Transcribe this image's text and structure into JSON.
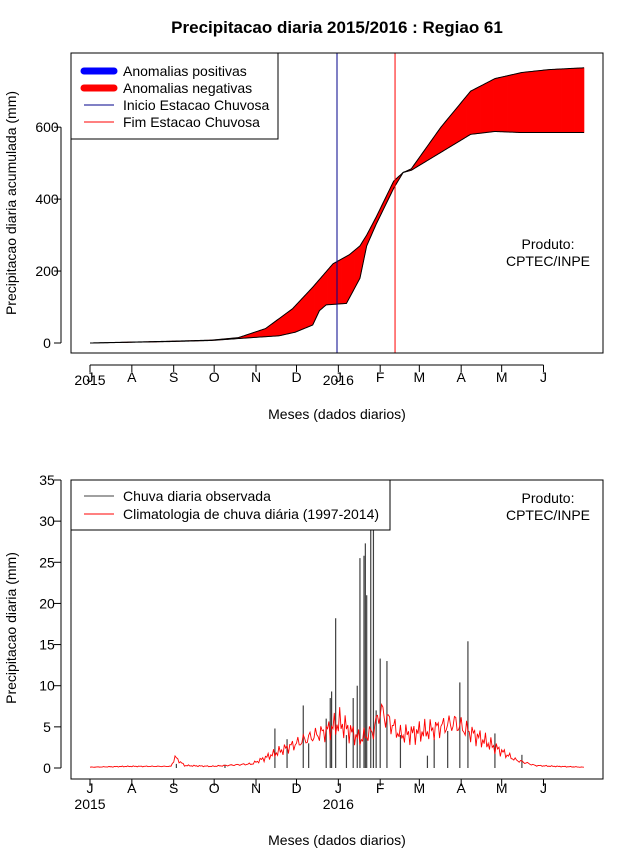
{
  "title": "Precipitacao diaria 2015/2016 : Regiao 61",
  "chart_data": [
    {
      "type": "area",
      "ylabel": "Precipitacao diaria acumulada (mm)",
      "xlabel": "Meses (dados diarios)",
      "ylim": [
        0,
        770
      ],
      "yticks": [
        0,
        200,
        400,
        600
      ],
      "month_ticks": [
        "J",
        "A",
        "S",
        "O",
        "N",
        "D",
        "J",
        "F",
        "M",
        "A",
        "M",
        "J"
      ],
      "year_labels": [
        "2015",
        "2016"
      ],
      "legend": [
        "Anomalias positivas",
        "Anomalias negativas",
        "Inicio Estacao Chuvosa",
        "Fim Estacao Chuvosa"
      ],
      "legend_colors": [
        "#0000ff",
        "#ff0000",
        "#00008b",
        "#ff0000"
      ],
      "annotation": [
        "Produto:",
        "CPTEC/INPE"
      ],
      "start_season_day": 183,
      "end_season_day": 226,
      "observed_cumulative": {
        "day": [
          0,
          60,
          90,
          120,
          140,
          152,
          165,
          170,
          175,
          190,
          200,
          205,
          212,
          225,
          232,
          238,
          260,
          282,
          300,
          320,
          340,
          366
        ],
        "mm": [
          0,
          4,
          7,
          15,
          20,
          30,
          50,
          90,
          106,
          110,
          180,
          270,
          330,
          430,
          474,
          480,
          530,
          580,
          588,
          585,
          585,
          585
        ]
      },
      "climatology_cumulative": {
        "day": [
          0,
          60,
          90,
          110,
          130,
          150,
          165,
          180,
          192,
          200,
          205,
          212,
          225,
          232,
          238,
          260,
          282,
          300,
          320,
          340,
          366
        ],
        "mm": [
          0,
          5,
          8,
          15,
          40,
          95,
          155,
          220,
          245,
          270,
          300,
          350,
          450,
          474,
          484,
          600,
          700,
          735,
          752,
          760,
          765
        ]
      }
    },
    {
      "type": "bar",
      "ylabel": "Precipitacao diaria (mm)",
      "xlabel": "Meses (dados diarios)",
      "ylim": [
        0,
        35
      ],
      "yticks": [
        0,
        5,
        10,
        15,
        20,
        25,
        30,
        35
      ],
      "month_ticks": [
        "J",
        "A",
        "S",
        "O",
        "N",
        "D",
        "J",
        "F",
        "M",
        "A",
        "M",
        "J"
      ],
      "year_labels": [
        "2015",
        "2016"
      ],
      "legend": [
        "Chuva diaria observada",
        "Climatologia de chuva diária (1997-2014)"
      ],
      "legend_colors": [
        "#404040",
        "#ff0000"
      ],
      "annotation": [
        "Produto:",
        "CPTEC/INPE"
      ],
      "observed_daily": {
        "day": [
          64,
          100,
          137,
          146,
          158,
          162,
          175,
          178,
          179,
          182,
          190,
          195,
          198,
          200,
          203,
          204,
          205,
          208,
          210,
          212,
          215,
          220,
          230,
          250,
          255,
          265,
          274,
          280,
          300,
          320
        ],
        "mm": [
          0.5,
          0.4,
          4.8,
          3.5,
          7.6,
          3.0,
          6.0,
          8.5,
          9.3,
          18.2,
          4.0,
          8.5,
          10.0,
          25.5,
          25.8,
          27.3,
          21.0,
          29.5,
          29.5,
          7.0,
          13.3,
          13.0,
          4.0,
          1.5,
          3.5,
          4.5,
          10.4,
          15.4,
          4.2,
          1.6
        ]
      },
      "climatology_daily": {
        "day": [
          0,
          30,
          60,
          63,
          70,
          90,
          120,
          140,
          160,
          175,
          185,
          200,
          210,
          215,
          230,
          250,
          270,
          285,
          300,
          315,
          330,
          345,
          366
        ],
        "mm": [
          0.1,
          0.2,
          0.2,
          1.3,
          0.3,
          0.2,
          0.5,
          2.0,
          3.5,
          4.5,
          5.5,
          3.5,
          4.5,
          7.0,
          4.0,
          4.5,
          5.5,
          4.0,
          2.5,
          1.0,
          0.3,
          0.2,
          0.1
        ]
      }
    }
  ]
}
